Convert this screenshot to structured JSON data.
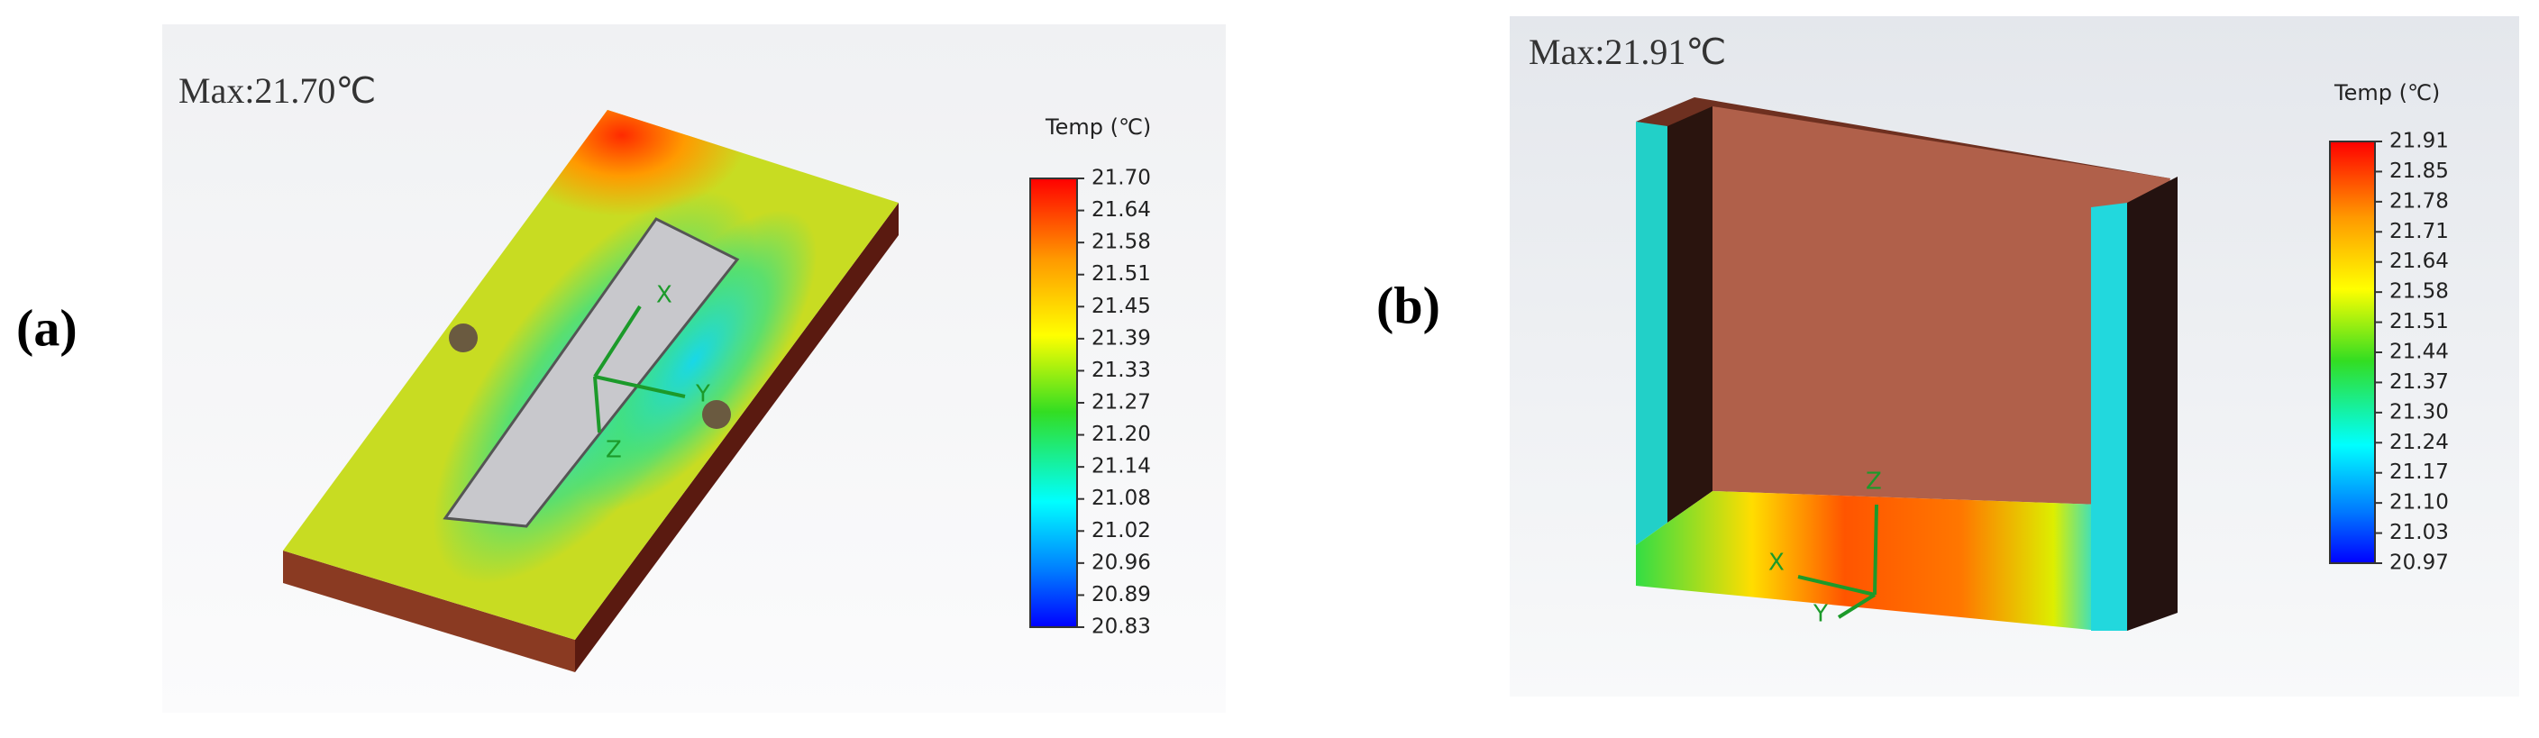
{
  "panels": [
    {
      "label": "(a)",
      "max_text": "Max:21.70℃",
      "legend": {
        "title": "Temp (℃)",
        "ticks": [
          "21.70",
          "21.64",
          "21.58",
          "21.51",
          "21.45",
          "21.39",
          "21.33",
          "21.27",
          "21.20",
          "21.14",
          "21.08",
          "21.02",
          "20.96",
          "20.89",
          "20.83"
        ]
      },
      "axes": {
        "x": "X",
        "y": "Y",
        "z": "Z"
      }
    },
    {
      "label": "(b)",
      "max_text": "Max:21.91℃",
      "legend": {
        "title": "Temp (℃)",
        "ticks": [
          "21.91",
          "21.85",
          "21.78",
          "21.71",
          "21.64",
          "21.58",
          "21.51",
          "21.44",
          "21.37",
          "21.30",
          "21.24",
          "21.17",
          "21.10",
          "21.03",
          "20.97"
        ]
      },
      "axes": {
        "x": "X",
        "y": "Y",
        "z": "Z"
      }
    }
  ]
}
